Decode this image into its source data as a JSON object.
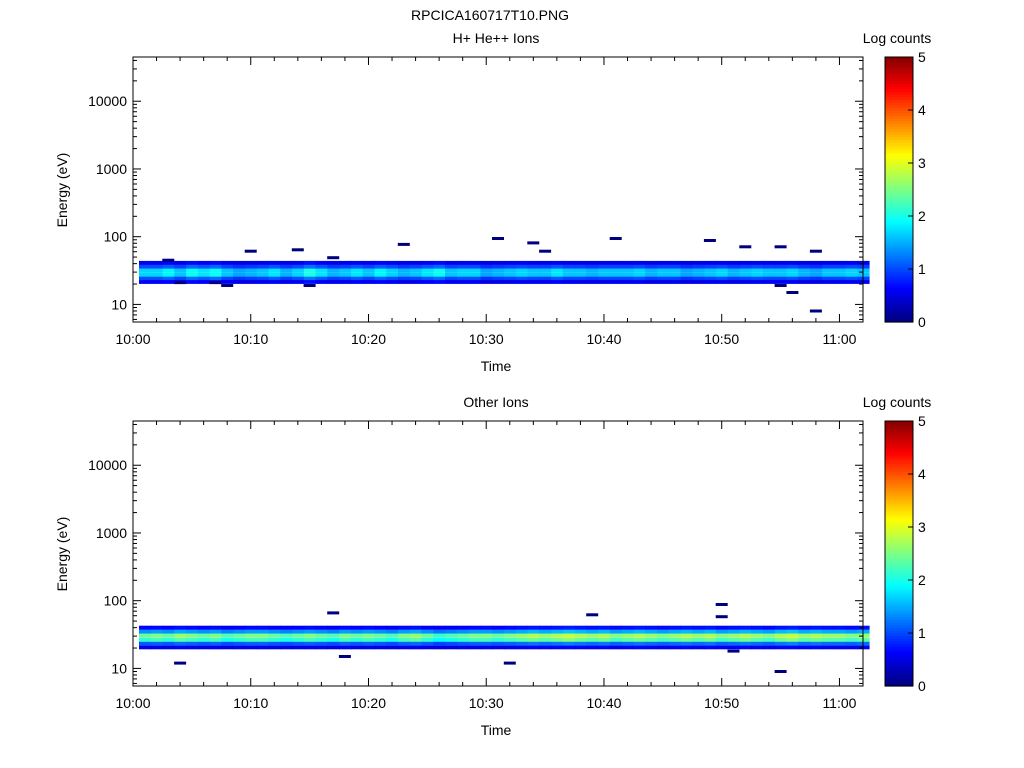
{
  "figure_title": "RPCICA160717T10.PNG",
  "colors": {
    "background": "#ffffff",
    "axis": "#000000"
  },
  "colorbar": {
    "label": "Log counts",
    "range": [
      0,
      5
    ],
    "ticks": [
      "0",
      "1",
      "2",
      "3",
      "4",
      "5"
    ],
    "colormap": "jet"
  },
  "chart_data": [
    {
      "type": "heatmap",
      "title": "H+ He++ Ions",
      "xlabel": "Time",
      "ylabel": "Energy (eV)",
      "x_ticks": [
        "10:00",
        "10:10",
        "10:20",
        "10:30",
        "10:40",
        "10:50",
        "11:00"
      ],
      "x_range": [
        "10:00",
        "11:02"
      ],
      "y_scale": "log",
      "y_range": [
        5.5,
        45000
      ],
      "y_ticks": [
        "10",
        "100",
        "1000",
        "10000"
      ],
      "band": {
        "energy_bins": [
          21.5,
          24.5,
          27.5,
          31.5,
          36.0,
          41.0
        ],
        "profile": [
          0.55,
          0.95,
          1.6,
          1.6,
          0.95,
          0.55
        ],
        "column_levels": [
          1.05,
          1.05,
          1.15,
          1.0,
          1.2,
          1.1,
          1.2,
          1.0,
          0.9,
          0.95,
          1.0,
          1.1,
          0.95,
          1.05,
          1.25,
          1.1,
          0.95,
          1.0,
          1.1,
          1.0,
          1.15,
          1.05,
          0.95,
          1.0,
          1.1,
          1.2,
          1.0,
          1.05,
          1.05,
          0.9,
          0.95,
          1.0,
          1.05,
          1.0,
          1.0,
          1.1,
          1.0,
          1.0,
          0.95,
          1.0,
          1.0,
          1.0,
          1.05,
          0.95,
          1.0,
          1.0,
          0.9,
          0.95,
          1.0,
          1.05,
          0.95,
          1.0,
          1.05,
          1.0,
          1.0,
          1.05,
          0.95,
          0.9,
          1.0,
          1.0,
          1.05,
          1.0
        ]
      },
      "isolated_counts": [
        {
          "time": "10:03",
          "energy": 45
        },
        {
          "time": "10:04",
          "energy": 21
        },
        {
          "time": "10:07",
          "energy": 21
        },
        {
          "time": "10:08",
          "energy": 19
        },
        {
          "time": "10:10",
          "energy": 61
        },
        {
          "time": "10:14",
          "energy": 64
        },
        {
          "time": "10:15",
          "energy": 19
        },
        {
          "time": "10:17",
          "energy": 49
        },
        {
          "time": "10:23",
          "energy": 77
        },
        {
          "time": "10:31",
          "energy": 94
        },
        {
          "time": "10:34",
          "energy": 81
        },
        {
          "time": "10:35",
          "energy": 61
        },
        {
          "time": "10:41",
          "energy": 94
        },
        {
          "time": "10:49",
          "energy": 88
        },
        {
          "time": "10:52",
          "energy": 71
        },
        {
          "time": "10:55",
          "energy": 71
        },
        {
          "time": "10:55",
          "energy": 19
        },
        {
          "time": "10:56",
          "energy": 15
        },
        {
          "time": "10:58",
          "energy": 61
        },
        {
          "time": "10:58",
          "energy": 8
        }
      ]
    },
    {
      "type": "heatmap",
      "title": "Other Ions",
      "xlabel": "Time",
      "ylabel": "Energy (eV)",
      "x_ticks": [
        "10:00",
        "10:10",
        "10:20",
        "10:30",
        "10:40",
        "10:50",
        "11:00"
      ],
      "x_range": [
        "10:00",
        "11:02"
      ],
      "y_scale": "log",
      "y_range": [
        5.5,
        45000
      ],
      "y_ticks": [
        "10",
        "100",
        "1000",
        "10000"
      ],
      "band": {
        "energy_bins": [
          20.5,
          23.5,
          26.5,
          30.5,
          35.0,
          40.0
        ],
        "profile": [
          0.55,
          1.1,
          2.2,
          2.5,
          1.4,
          0.65
        ],
        "column_levels": [
          0.95,
          1.0,
          0.95,
          1.05,
          1.0,
          0.95,
          1.0,
          0.9,
          0.95,
          1.0,
          1.0,
          0.95,
          0.9,
          0.95,
          1.0,
          0.95,
          0.9,
          1.0,
          0.95,
          1.0,
          0.95,
          0.9,
          1.0,
          1.05,
          0.95,
          0.85,
          0.9,
          0.95,
          1.0,
          1.0,
          0.95,
          1.0,
          1.05,
          1.1,
          1.05,
          1.1,
          1.15,
          1.1,
          1.05,
          1.1,
          1.0,
          1.05,
          1.1,
          1.05,
          1.0,
          1.05,
          1.1,
          1.05,
          1.1,
          1.0,
          1.05,
          1.1,
          1.05,
          1.0,
          1.1,
          1.15,
          1.05,
          1.1,
          1.05,
          1.05,
          1.0,
          1.05
        ]
      },
      "isolated_counts": [
        {
          "time": "10:04",
          "energy": 12
        },
        {
          "time": "10:17",
          "energy": 66
        },
        {
          "time": "10:18",
          "energy": 15
        },
        {
          "time": "10:32",
          "energy": 12
        },
        {
          "time": "10:39",
          "energy": 62
        },
        {
          "time": "10:50",
          "energy": 88
        },
        {
          "time": "10:50",
          "energy": 58
        },
        {
          "time": "10:51",
          "energy": 18
        },
        {
          "time": "10:55",
          "energy": 9
        }
      ]
    }
  ]
}
